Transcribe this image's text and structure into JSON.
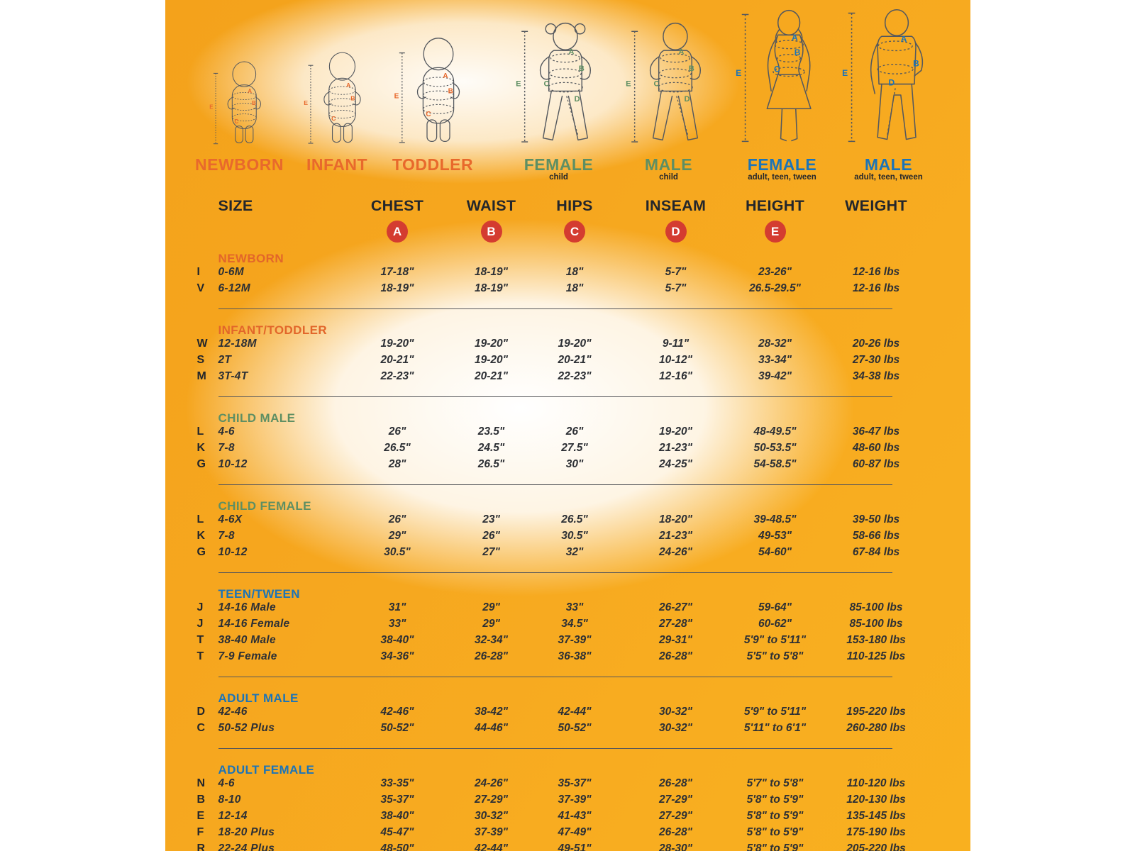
{
  "palette": {
    "background_orange": "#F6A71F",
    "glow_white": "#FFFFFF",
    "badge_red": "#D43C30",
    "accent_orange": "#E2662A",
    "accent_green": "#5E8F63",
    "accent_blue": "#1B74B8",
    "header_text": "#23262B",
    "data_text": "#2D3035"
  },
  "figures": [
    {
      "id": "newborn",
      "type": "baby",
      "name": "NEWBORN",
      "caption": "",
      "color": "#E8692C",
      "markers": [
        "A",
        "B",
        "C",
        "E"
      ]
    },
    {
      "id": "infant",
      "type": "baby",
      "name": "INFANT",
      "caption": "",
      "color": "#E8692C",
      "markers": [
        "A",
        "B",
        "C",
        "E"
      ]
    },
    {
      "id": "toddler",
      "type": "baby",
      "name": "TODDLER",
      "caption": "",
      "color": "#E8692C",
      "markers": [
        "A",
        "B",
        "C",
        "E"
      ]
    },
    {
      "id": "female-child",
      "type": "child-female",
      "name": "FEMALE",
      "caption": "child",
      "color": "#5E8F63",
      "markers": [
        "A",
        "B",
        "C",
        "D",
        "E"
      ]
    },
    {
      "id": "male-child",
      "type": "child-male",
      "name": "MALE",
      "caption": "child",
      "color": "#5E8F63",
      "markers": [
        "A",
        "B",
        "C",
        "D",
        "E"
      ]
    },
    {
      "id": "female-adult",
      "type": "adult-female",
      "name": "FEMALE",
      "caption": "adult, teen, tween",
      "color": "#1B74B8",
      "markers": [
        "A",
        "B",
        "C",
        "E"
      ]
    },
    {
      "id": "male-adult",
      "type": "adult-male",
      "name": "MALE",
      "caption": "adult, teen, tween",
      "color": "#1B74B8",
      "markers": [
        "A",
        "B",
        "D",
        "E"
      ]
    }
  ],
  "table": {
    "columns": [
      "SIZE",
      "CHEST",
      "WAIST",
      "HIPS",
      "INSEAM",
      "HEIGHT",
      "WEIGHT"
    ],
    "badges": [
      "A",
      "B",
      "C",
      "D",
      "E"
    ],
    "badge_color": "#D43C30",
    "sections": [
      {
        "title": "NEWBORN",
        "color": "#E2662A",
        "rows": [
          {
            "code": "I",
            "size": "0-6M",
            "values": [
              "17-18\"",
              "18-19\"",
              "18\"",
              "5-7\"",
              "23-26\"",
              "12-16 lbs"
            ]
          },
          {
            "code": "V",
            "size": "6-12M",
            "values": [
              "18-19\"",
              "18-19\"",
              "18\"",
              "5-7\"",
              "26.5-29.5\"",
              "12-16 lbs"
            ]
          }
        ]
      },
      {
        "title": "INFANT/TODDLER",
        "color": "#E2662A",
        "rows": [
          {
            "code": "W",
            "size": "12-18M",
            "values": [
              "19-20\"",
              "19-20\"",
              "19-20\"",
              "9-11\"",
              "28-32\"",
              "20-26 lbs"
            ]
          },
          {
            "code": "S",
            "size": "2T",
            "values": [
              "20-21\"",
              "19-20\"",
              "20-21\"",
              "10-12\"",
              "33-34\"",
              "27-30 lbs"
            ]
          },
          {
            "code": "M",
            "size": "3T-4T",
            "values": [
              "22-23\"",
              "20-21\"",
              "22-23\"",
              "12-16\"",
              "39-42\"",
              "34-38 lbs"
            ]
          }
        ]
      },
      {
        "title": "CHILD MALE",
        "color": "#5E8F63",
        "rows": [
          {
            "code": "L",
            "size": "4-6",
            "values": [
              "26\"",
              "23.5\"",
              "26\"",
              "19-20\"",
              "48-49.5\"",
              "36-47 lbs"
            ]
          },
          {
            "code": "K",
            "size": "7-8",
            "values": [
              "26.5\"",
              "24.5\"",
              "27.5\"",
              "21-23\"",
              "50-53.5\"",
              "48-60 lbs"
            ]
          },
          {
            "code": "G",
            "size": "10-12",
            "values": [
              "28\"",
              "26.5\"",
              "30\"",
              "24-25\"",
              "54-58.5\"",
              "60-87 lbs"
            ]
          }
        ]
      },
      {
        "title": "CHILD FEMALE",
        "color": "#5E8F63",
        "rows": [
          {
            "code": "L",
            "size": "4-6X",
            "values": [
              "26\"",
              "23\"",
              "26.5\"",
              "18-20\"",
              "39-48.5\"",
              "39-50 lbs"
            ]
          },
          {
            "code": "K",
            "size": "7-8",
            "values": [
              "29\"",
              "26\"",
              "30.5\"",
              "21-23\"",
              "49-53\"",
              "58-66 lbs"
            ]
          },
          {
            "code": "G",
            "size": "10-12",
            "values": [
              "30.5\"",
              "27\"",
              "32\"",
              "24-26\"",
              "54-60\"",
              "67-84 lbs"
            ]
          }
        ]
      },
      {
        "title": "TEEN/TWEEN",
        "color": "#1B74B8",
        "rows": [
          {
            "code": "J",
            "size": "14-16 Male",
            "values": [
              "31\"",
              "29\"",
              "33\"",
              "26-27\"",
              "59-64\"",
              "85-100 lbs"
            ]
          },
          {
            "code": "J",
            "size": "14-16 Female",
            "values": [
              "33\"",
              "29\"",
              "34.5\"",
              "27-28\"",
              "60-62\"",
              "85-100 lbs"
            ]
          },
          {
            "code": "T",
            "size": "38-40 Male",
            "values": [
              "38-40\"",
              "32-34\"",
              "37-39\"",
              "29-31\"",
              "5'9\" to 5'11\"",
              "153-180 lbs"
            ]
          },
          {
            "code": "T",
            "size": "7-9 Female",
            "values": [
              "34-36\"",
              "26-28\"",
              "36-38\"",
              "26-28\"",
              "5'5\" to 5'8\"",
              "110-125 lbs"
            ]
          }
        ]
      },
      {
        "title": "ADULT MALE",
        "color": "#1B74B8",
        "rows": [
          {
            "code": "D",
            "size": "42-46",
            "values": [
              "42-46\"",
              "38-42\"",
              "42-44\"",
              "30-32\"",
              "5'9\" to 5'11\"",
              "195-220 lbs"
            ]
          },
          {
            "code": "C",
            "size": "50-52 Plus",
            "values": [
              "50-52\"",
              "44-46\"",
              "50-52\"",
              "30-32\"",
              "5'11\" to 6'1\"",
              "260-280 lbs"
            ]
          }
        ]
      },
      {
        "title": "ADULT FEMALE",
        "color": "#1B74B8",
        "rows": [
          {
            "code": "N",
            "size": "4-6",
            "values": [
              "33-35\"",
              "24-26\"",
              "35-37\"",
              "26-28\"",
              "5'7\" to 5'8\"",
              "110-120 lbs"
            ]
          },
          {
            "code": "B",
            "size": "8-10",
            "values": [
              "35-37\"",
              "27-29\"",
              "37-39\"",
              "27-29\"",
              "5'8\" to 5'9\"",
              "120-130 lbs"
            ]
          },
          {
            "code": "E",
            "size": "12-14",
            "values": [
              "38-40\"",
              "30-32\"",
              "41-43\"",
              "27-29\"",
              "5'8\" to 5'9\"",
              "135-145 lbs"
            ]
          },
          {
            "code": "F",
            "size": "18-20 Plus",
            "values": [
              "45-47\"",
              "37-39\"",
              "47-49\"",
              "26-28\"",
              "5'8\" to 5'9\"",
              "175-190 lbs"
            ]
          },
          {
            "code": "R",
            "size": "22-24 Plus",
            "values": [
              "48-50\"",
              "42-44\"",
              "49-51\"",
              "28-30\"",
              "5'8\" to 5'9\"",
              "205-220 lbs"
            ]
          }
        ]
      }
    ]
  }
}
